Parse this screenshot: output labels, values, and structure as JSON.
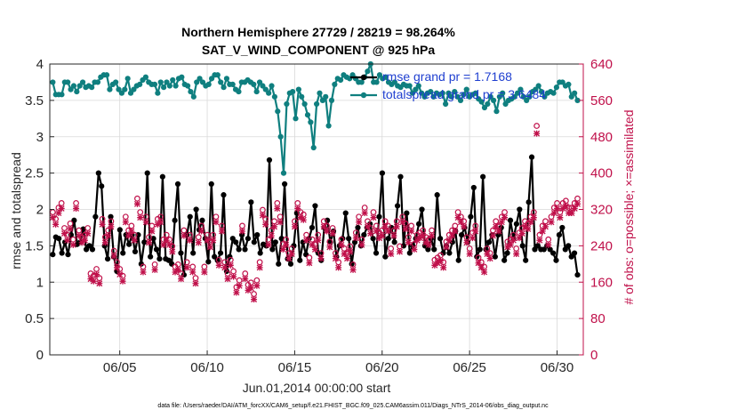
{
  "chart_data": {
    "type": "line",
    "title_line1": "Northern Hemisphere 27729 / 28219 = 98.264%",
    "title_line2": "SAT_V_WIND_COMPONENT @ 925 hPa",
    "xlabel": "Jun.01,2014 00:00:00 start",
    "ylabel": "rmse and totalspread",
    "ylabel_right": "# of obs: o=possible; ×=assimilated",
    "footnote": "data file: /Users/raeder/DAI/ATM_forcXX/CAM6_setup/f.e21.FHIST_BGC.f09_025.CAM6assim.011/Diags_NTrS_2014-06/obs_diag_output.nc",
    "xlim": [
      1.0,
      31.5
    ],
    "ylim": [
      0,
      4
    ],
    "ylim_right": [
      0,
      640
    ],
    "xticks": [
      5,
      10,
      15,
      20,
      25,
      30
    ],
    "xtick_labels": [
      "06/05",
      "06/10",
      "06/15",
      "06/20",
      "06/25",
      "06/30"
    ],
    "yticks": [
      0,
      0.5,
      1,
      1.5,
      2,
      2.5,
      3,
      3.5,
      4
    ],
    "ytick_labels": [
      "0",
      "0.5",
      "1",
      "1.5",
      "2",
      "2.5",
      "3",
      "3.5",
      "4"
    ],
    "yticks_right": [
      0,
      80,
      160,
      240,
      320,
      400,
      480,
      560,
      640
    ],
    "ytick_right_labels": [
      "0",
      "80",
      "160",
      "240",
      "320",
      "400",
      "480",
      "560",
      "640"
    ],
    "grid": true,
    "legend_position": "top-right",
    "series": [
      {
        "name": "rmse grand pr = 1.7168",
        "axis": "left",
        "color": "#000000",
        "values": [
          1.38,
          1.62,
          1.6,
          1.4,
          1.55,
          1.38,
          1.65,
          1.85,
          1.52,
          1.55,
          1.73,
          1.45,
          1.5,
          1.45,
          1.9,
          2.5,
          2.32,
          1.5,
          1.32,
          1.9,
          1.35,
          1.15,
          1.72,
          1.4,
          1.65,
          1.52,
          1.65,
          1.42,
          1.65,
          1.25,
          1.55,
          2.5,
          1.35,
          1.6,
          1.45,
          1.32,
          2.45,
          1.32,
          1.3,
          1.25,
          1.85,
          2.35,
          1.4,
          1.1,
          1.65,
          1.9,
          1.4,
          2.0,
          1.72,
          1.85,
          1.6,
          1.28,
          2.35,
          1.35,
          1.3,
          1.4,
          2.2,
          1.15,
          1.35,
          1.6,
          1.55,
          1.45,
          1.65,
          1.45,
          1.6,
          2.1,
          1.55,
          1.65,
          1.4,
          1.52,
          1.5,
          2.68,
          1.45,
          1.55,
          1.25,
          1.6,
          2.35,
          1.32,
          1.25,
          1.5,
          1.95,
          1.3,
          1.55,
          1.38,
          1.6,
          1.75,
          2.05,
          1.4,
          1.3,
          1.75,
          1.85,
          1.55,
          1.7,
          1.35,
          1.5,
          1.6,
          1.95,
          1.6,
          1.25,
          1.55,
          1.75,
          1.5,
          1.65,
          1.75,
          1.8,
          1.6,
          1.4,
          1.9,
          2.5,
          1.35,
          1.6,
          1.75,
          1.55,
          2.05,
          2.45,
          1.5,
          1.95,
          1.4,
          1.5,
          1.6,
          1.8,
          2.0,
          1.5,
          1.45,
          1.6,
          1.45,
          2.2,
          1.6,
          1.4,
          1.5,
          1.4,
          1.55,
          1.7,
          1.3,
          1.65,
          1.75,
          1.55,
          1.9,
          2.3,
          1.35,
          1.45,
          2.45,
          1.45,
          1.55,
          1.65,
          1.35,
          1.65,
          1.75,
          1.3,
          1.4,
          1.85,
          1.6,
          1.8,
          2.0,
          1.5,
          1.3,
          2.1,
          2.72,
          1.45,
          1.5,
          1.45,
          1.45,
          1.5,
          1.45,
          1.4,
          1.3,
          1.65,
          1.75,
          1.45,
          1.5,
          1.35,
          1.4,
          1.1
        ]
      },
      {
        "name": "totalspread grand pr = 3.6484",
        "axis": "left",
        "color": "#0f7f7f",
        "values": [
          3.75,
          3.58,
          3.58,
          3.58,
          3.75,
          3.75,
          3.65,
          3.7,
          3.62,
          3.7,
          3.75,
          3.68,
          3.7,
          3.68,
          3.75,
          3.75,
          3.82,
          3.85,
          3.85,
          3.65,
          3.72,
          3.75,
          3.65,
          3.6,
          3.65,
          3.8,
          3.6,
          3.65,
          3.7,
          3.72,
          3.78,
          3.82,
          3.75,
          3.72,
          3.72,
          3.6,
          3.75,
          3.68,
          3.75,
          3.7,
          3.78,
          3.7,
          3.8,
          3.82,
          3.72,
          3.7,
          3.62,
          3.55,
          3.75,
          3.8,
          3.75,
          3.7,
          3.72,
          3.8,
          3.85,
          3.85,
          3.75,
          3.68,
          3.8,
          3.72,
          3.72,
          3.65,
          3.62,
          3.75,
          3.75,
          3.78,
          3.75,
          3.72,
          3.62,
          3.75,
          3.7,
          3.65,
          3.6,
          3.7,
          3.55,
          3.35,
          3.0,
          2.5,
          3.45,
          3.6,
          3.62,
          3.25,
          3.65,
          3.55,
          3.45,
          3.3,
          3.2,
          2.85,
          3.45,
          3.6,
          3.5,
          3.55,
          3.15,
          3.5,
          3.72,
          3.8,
          3.78,
          3.85,
          3.82,
          3.8,
          3.85,
          3.8,
          3.75,
          3.75,
          3.82,
          3.9,
          4.0,
          3.75,
          3.75,
          3.85,
          3.8,
          3.82,
          3.75,
          3.72,
          3.75,
          3.7,
          3.68,
          3.72,
          3.7,
          3.7,
          3.6,
          3.65,
          3.7,
          3.6,
          3.55,
          3.6,
          3.62,
          3.55,
          3.6,
          3.58,
          3.6,
          3.45,
          3.6,
          3.55,
          3.62,
          3.55,
          3.5,
          3.58,
          3.65,
          3.55,
          3.58,
          3.6,
          3.52,
          3.48,
          3.4,
          3.45,
          3.55,
          3.5,
          3.35,
          3.55,
          3.6,
          3.45,
          3.5,
          3.52,
          3.55,
          3.6,
          3.65,
          3.55,
          3.5,
          3.55,
          3.62,
          3.65,
          3.7,
          3.62,
          3.55,
          3.6,
          3.62,
          3.6,
          3.68,
          3.75,
          3.75,
          3.7,
          3.72,
          3.55,
          3.6,
          3.5
        ]
      },
      {
        "name": "# obs possible",
        "axis": "right",
        "color": "#c0104a",
        "marker": "o",
        "values": [
          310,
          295,
          320,
          330,
          275,
          260,
          285,
          250,
          330,
          270,
          255,
          260,
          275,
          175,
          170,
          185,
          165,
          295,
          255,
          270,
          290,
          225,
          200,
          185,
          170,
          300,
          270,
          280,
          260,
          340,
          310,
          190,
          300,
          255,
          280,
          195,
          295,
          300,
          250,
          260,
          250,
          235,
          190,
          195,
          175,
          270,
          200,
          260,
          190,
          165,
          255,
          280,
          190,
          260,
          245,
          260,
          300,
          205,
          280,
          200,
          175,
          205,
          180,
          145,
          160,
          280,
          175,
          150,
          155,
          130,
          160,
          200,
          315,
          295,
          250,
          270,
          290,
          330,
          300,
          240,
          250,
          220,
          230,
          290,
          330,
          310,
          305,
          260,
          210,
          250,
          240,
          260,
          220,
          290,
          280,
          245,
          275,
          220,
          200,
          250,
          230,
          220,
          235,
          195,
          265,
          300,
          250,
          320,
          290,
          275,
          310,
          280,
          265,
          270,
          290,
          280,
          230,
          270,
          290,
          235,
          300,
          285,
          255,
          280,
          240,
          260,
          265,
          270,
          255,
          250,
          270,
          205,
          210,
          215,
          200,
          245,
          260,
          270,
          280,
          310,
          300,
          290,
          255,
          230,
          265,
          280,
          210,
          200,
          190,
          230,
          220,
          270,
          290,
          280,
          300,
          310,
          245,
          250,
          260,
          230,
          265,
          275,
          290,
          285,
          300,
          310,
          500,
          260,
          280,
          290,
          250,
          300,
          320,
          330,
          310,
          330,
          335,
          320,
          320,
          330,
          340
        ]
      },
      {
        "name": "# obs assimilated",
        "axis": "right",
        "color": "#c0104a",
        "marker": "x",
        "values": [
          305,
          290,
          315,
          325,
          270,
          255,
          280,
          245,
          325,
          265,
          250,
          255,
          270,
          170,
          165,
          180,
          160,
          290,
          250,
          265,
          285,
          220,
          195,
          180,
          165,
          295,
          265,
          275,
          255,
          335,
          305,
          185,
          295,
          250,
          275,
          190,
          290,
          295,
          245,
          255,
          245,
          230,
          185,
          190,
          170,
          265,
          195,
          255,
          185,
          160,
          250,
          275,
          185,
          255,
          240,
          255,
          295,
          200,
          275,
          195,
          170,
          200,
          175,
          140,
          155,
          275,
          170,
          145,
          150,
          125,
          155,
          195,
          310,
          290,
          245,
          265,
          285,
          325,
          295,
          235,
          245,
          215,
          225,
          285,
          325,
          305,
          300,
          255,
          205,
          245,
          235,
          255,
          215,
          285,
          275,
          240,
          270,
          215,
          195,
          245,
          225,
          215,
          230,
          190,
          260,
          295,
          245,
          315,
          285,
          270,
          305,
          275,
          260,
          265,
          285,
          275,
          225,
          265,
          285,
          230,
          295,
          280,
          250,
          275,
          235,
          255,
          260,
          265,
          250,
          245,
          265,
          200,
          205,
          210,
          195,
          240,
          255,
          265,
          275,
          305,
          295,
          285,
          250,
          225,
          260,
          275,
          205,
          195,
          185,
          225,
          215,
          265,
          285,
          275,
          295,
          305,
          240,
          245,
          255,
          225,
          260,
          270,
          285,
          280,
          295,
          305,
          490,
          255,
          275,
          285,
          245,
          295,
          315,
          325,
          305,
          325,
          330,
          315,
          315,
          325,
          335
        ]
      }
    ]
  }
}
